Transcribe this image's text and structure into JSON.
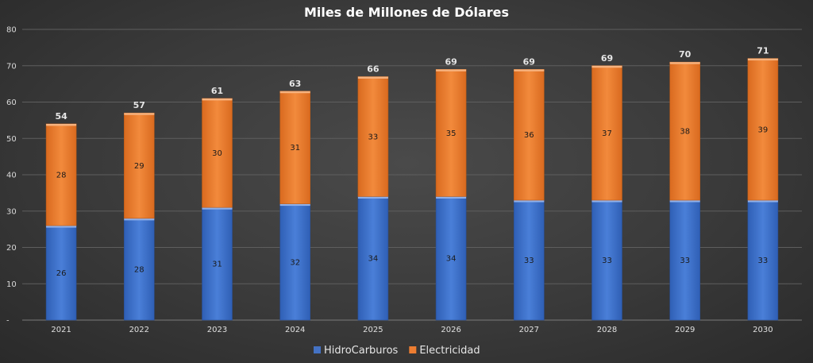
{
  "chart_data": {
    "type": "bar",
    "stacked": true,
    "title": "Miles de Millones de Dólares",
    "categories": [
      "2021",
      "2022",
      "2023",
      "2024",
      "2025",
      "2026",
      "2027",
      "2028",
      "2029",
      "2030"
    ],
    "series": [
      {
        "name": "HidroCarburos",
        "values": [
          26,
          28,
          31,
          32,
          34,
          34,
          33,
          33,
          33,
          33
        ],
        "color": "#4472c4"
      },
      {
        "name": "Electricidad",
        "values": [
          28,
          29,
          30,
          31,
          33,
          35,
          36,
          37,
          38,
          39
        ],
        "color": "#ed7d31"
      }
    ],
    "totals": [
      54,
      57,
      61,
      63,
      66,
      69,
      69,
      69,
      70,
      71
    ],
    "ylim": [
      0,
      80
    ],
    "yticks": [
      0,
      10,
      20,
      30,
      40,
      50,
      60,
      70,
      80
    ],
    "ytick_labels": [
      "-",
      "10",
      "20",
      "30",
      "40",
      "50",
      "60",
      "70",
      "80"
    ],
    "grid": true,
    "legend": "bottom-center",
    "xlabel": "",
    "ylabel": ""
  }
}
